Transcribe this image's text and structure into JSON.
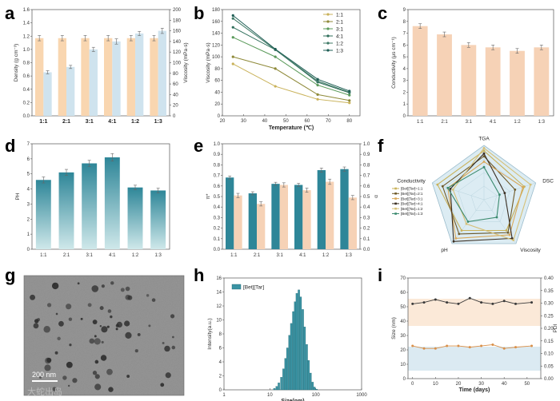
{
  "panels": {
    "a": "a",
    "b": "b",
    "c": "c",
    "d": "d",
    "e": "e",
    "f": "f",
    "g": "g",
    "h": "h",
    "i": "i"
  },
  "watermark": "大蛇出岛",
  "colors": {
    "orange_bar": "#f9d6b0",
    "blue_bar": "#cfe3ee",
    "teal": "#2e8698",
    "olive": "#c9b25a",
    "dark_green": "#1f5e55",
    "peach": "#f6d2b6",
    "hist": "#3a93a3"
  },
  "chart_data": [
    {
      "id": "a",
      "type": "bar",
      "categories": [
        "1:1",
        "2:1",
        "3:1",
        "4:1",
        "1:2",
        "1:3"
      ],
      "ylabel": "Density (g cm⁻³)",
      "ylabel2": "Viscosity (mPa·s)",
      "ylim": [
        0,
        1.6
      ],
      "y2lim": [
        0,
        200
      ],
      "yticks": [
        "0.0",
        "0.2",
        "0.4",
        "0.6",
        "0.8",
        "1.0",
        "1.2",
        "1.4",
        "1.6"
      ],
      "y2ticks": [
        "0",
        "20",
        "40",
        "60",
        "80",
        "100",
        "120",
        "140",
        "160",
        "180",
        "200"
      ],
      "series": [
        {
          "values": [
            1.17,
            1.17,
            1.17,
            1.17,
            1.17,
            1.17
          ],
          "err": [
            0.04,
            0.04,
            0.04,
            0.04,
            0.04,
            0.04
          ]
        },
        {
          "values": [
            82,
            92,
            125,
            140,
            155,
            160
          ],
          "err": [
            3,
            3,
            4,
            5,
            4,
            5
          ]
        }
      ]
    },
    {
      "id": "b",
      "type": "line",
      "x": [
        25,
        45,
        65,
        80
      ],
      "xlabel": "Temperature (℃)",
      "ylabel": "Viscosity (mPa·s)",
      "xlim": [
        20,
        85
      ],
      "ylim": [
        0,
        180
      ],
      "xticks": [
        "20",
        "30",
        "40",
        "50",
        "60",
        "70",
        "80"
      ],
      "yticks": [
        "0",
        "20",
        "40",
        "60",
        "80",
        "100",
        "120",
        "140",
        "160",
        "180"
      ],
      "series": [
        {
          "name": "1:1",
          "values": [
            88,
            50,
            28,
            22
          ]
        },
        {
          "name": "2:1",
          "values": [
            100,
            80,
            36,
            26
          ]
        },
        {
          "name": "3:1",
          "values": [
            133,
            100,
            52,
            35
          ]
        },
        {
          "name": "4:1",
          "values": [
            150,
            112,
            57,
            39
          ]
        },
        {
          "name": "1:2",
          "values": [
            165,
            112,
            59,
            40
          ]
        },
        {
          "name": "1:3",
          "values": [
            170,
            113,
            62,
            42
          ]
        }
      ]
    },
    {
      "id": "c",
      "type": "bar",
      "categories": [
        "1:1",
        "2:1",
        "3:1",
        "4:1",
        "1:2",
        "1:3"
      ],
      "ylabel": "Conductivity (μs cm⁻¹)",
      "ylim": [
        0,
        9
      ],
      "yticks": [
        "0",
        "1",
        "2",
        "3",
        "4",
        "5",
        "6",
        "7",
        "8",
        "9"
      ],
      "values": [
        7.6,
        6.9,
        6.0,
        5.8,
        5.5,
        5.8
      ],
      "err": [
        0.2,
        0.2,
        0.2,
        0.2,
        0.2,
        0.2
      ]
    },
    {
      "id": "d",
      "type": "bar",
      "categories": [
        "1:1",
        "2:1",
        "3:1",
        "4:1",
        "1:2",
        "1:3"
      ],
      "ylabel": "PH",
      "ylim": [
        0,
        7
      ],
      "yticks": [
        "0",
        "1",
        "2",
        "3",
        "4",
        "5",
        "6",
        "7"
      ],
      "values": [
        4.6,
        5.1,
        5.7,
        6.1,
        4.1,
        3.9
      ],
      "err": [
        0.2,
        0.2,
        0.2,
        0.25,
        0.15,
        0.15
      ]
    },
    {
      "id": "e",
      "type": "bar",
      "categories": [
        "1:1",
        "2:1",
        "3:1",
        "4:1",
        "1:2",
        "1:3"
      ],
      "ylabel": "π*",
      "ylabel2": "α",
      "ylim": [
        0,
        1.0
      ],
      "y2lim": [
        0,
        1.0
      ],
      "yticks": [
        "0.0",
        "0.1",
        "0.2",
        "0.3",
        "0.4",
        "0.5",
        "0.6",
        "0.7",
        "0.8",
        "0.9",
        "1.0"
      ],
      "series": [
        {
          "values": [
            0.68,
            0.53,
            0.62,
            0.61,
            0.75,
            0.76
          ],
          "err": [
            0.015,
            0.015,
            0.015,
            0.015,
            0.02,
            0.02
          ]
        },
        {
          "values": [
            0.51,
            0.43,
            0.61,
            0.56,
            0.64,
            0.49
          ],
          "err": [
            0.02,
            0.02,
            0.02,
            0.02,
            0.025,
            0.02
          ]
        }
      ]
    },
    {
      "id": "f",
      "type": "radar",
      "axes": [
        "TGA",
        "DSC",
        "Viscosity",
        "pH",
        "Conductivity"
      ],
      "series": [
        {
          "name": "[Bet][Tar]=1:1",
          "values": [
            0.9,
            0.78,
            0.7,
            0.7,
            0.9
          ],
          "color": "#c9b25a"
        },
        {
          "name": "[Bet][Tar]=2:1",
          "values": [
            0.8,
            0.6,
            0.75,
            0.78,
            0.8
          ],
          "color": "#6e5a2a"
        },
        {
          "name": "[Bet][Tar]=3:1",
          "values": [
            0.7,
            0.75,
            0.8,
            0.88,
            0.7
          ],
          "color": "#d9a85a"
        },
        {
          "name": "[Bet][Tar]=4:1",
          "values": [
            0.85,
            0.4,
            0.88,
            0.95,
            0.65
          ],
          "color": "#3a2e22"
        },
        {
          "name": "[Bet][Tar]=1:2",
          "values": [
            0.95,
            0.9,
            0.92,
            0.55,
            0.6
          ],
          "color": "#d6c078"
        },
        {
          "name": "[Bet][Tar]=1:3",
          "values": [
            0.6,
            0.3,
            0.4,
            0.5,
            0.7
          ],
          "color": "#3a8a6e"
        }
      ]
    },
    {
      "id": "g",
      "type": "image",
      "scalebar": "200 nm"
    },
    {
      "id": "h",
      "type": "histogram",
      "legend": "[Bet][Tar]",
      "xlabel": "Size(nm)",
      "ylabel": "Intensity(a.u.)",
      "xscale": "log",
      "xlim": [
        1,
        1000
      ],
      "xticks": [
        "1",
        "10",
        "100",
        "1000"
      ],
      "ylim": [
        0,
        16
      ],
      "yticks": [
        "0",
        "2",
        "4",
        "6",
        "8",
        "10",
        "12",
        "14",
        "16"
      ],
      "bins": [
        12,
        13.5,
        15,
        17,
        19,
        21,
        23,
        25.5,
        28,
        31,
        34,
        37,
        41,
        45,
        50,
        55,
        61,
        67,
        74,
        82,
        90,
        100
      ],
      "values": [
        0.2,
        0.5,
        1.0,
        1.8,
        3.0,
        4.5,
        6.0,
        7.8,
        9.5,
        11.2,
        12.6,
        13.8,
        14.3,
        13.3,
        11.5,
        9.0,
        6.5,
        4.2,
        2.4,
        1.1,
        0.4,
        0.1
      ]
    },
    {
      "id": "i",
      "type": "line",
      "xlabel": "Time (days)",
      "ylabel": "Size (nm)",
      "ylabel2": "PDI",
      "xlim": [
        -2,
        56
      ],
      "ylim": [
        0,
        70
      ],
      "y2lim": [
        0,
        0.4
      ],
      "xticks": [
        "0",
        "10",
        "20",
        "30",
        "40",
        "50"
      ],
      "yticks": [
        "0",
        "10",
        "20",
        "30",
        "40",
        "50",
        "60",
        "70"
      ],
      "y2ticks": [
        "0.00",
        "0.05",
        "0.10",
        "0.15",
        "0.20",
        "0.25",
        "0.30",
        "0.35",
        "0.40"
      ],
      "x": [
        0,
        5,
        10,
        15,
        20,
        25,
        30,
        35,
        40,
        45,
        52
      ],
      "series": [
        {
          "axis": "left",
          "values": [
            52,
            53,
            55,
            53,
            52,
            56,
            53,
            52,
            54,
            52,
            53
          ]
        },
        {
          "axis": "right",
          "values": [
            0.13,
            0.12,
            0.12,
            0.13,
            0.13,
            0.125,
            0.13,
            0.135,
            0.12,
            0.125,
            0.13
          ]
        }
      ]
    }
  ]
}
